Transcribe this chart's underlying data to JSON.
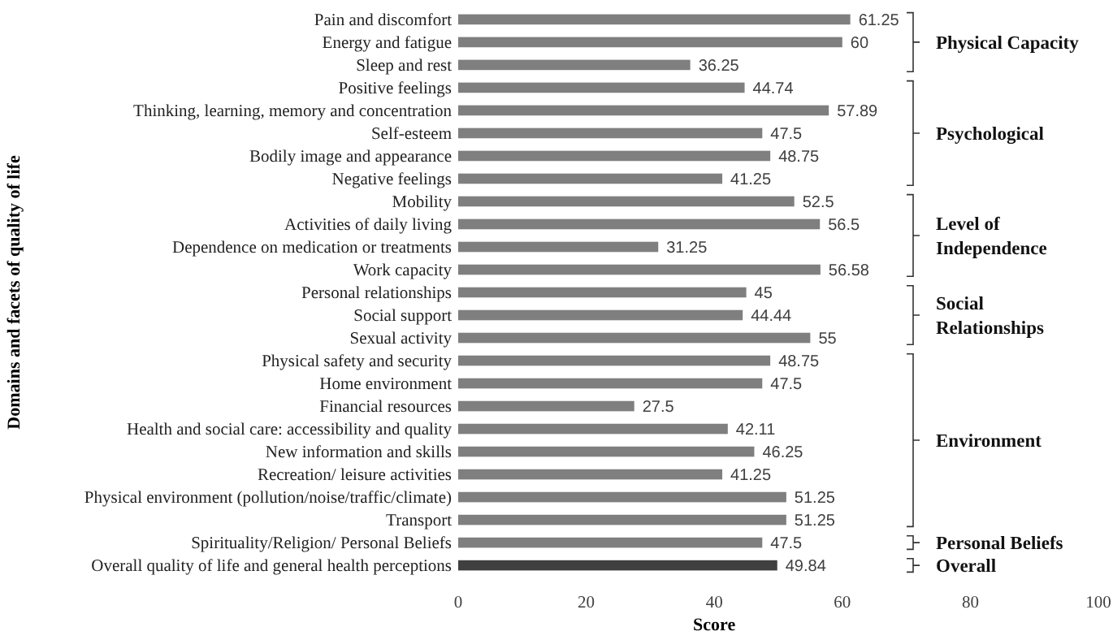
{
  "chart_data": {
    "type": "bar",
    "orientation": "horizontal",
    "xlabel": "Score",
    "ylabel": "Domains and facets of quality of life",
    "categories": [
      "Pain and discomfort",
      "Energy and fatigue",
      "Sleep and rest",
      "Positive feelings",
      "Thinking, learning, memory and concentration",
      "Self-esteem",
      "Bodily image and appearance",
      "Negative feelings",
      "Mobility",
      "Activities of daily living",
      "Dependence on medication or treatments",
      "Work capacity",
      "Personal relationships",
      "Social support",
      "Sexual activity",
      "Physical safety and security",
      "Home environment",
      "Financial resources",
      "Health and social care: accessibility and quality",
      "New information and skills",
      "Recreation/ leisure activities",
      "Physical environment (pollution/noise/traffic/climate)",
      "Transport",
      "Spirituality/Religion/ Personal Beliefs",
      "Overall quality of life and general health perceptions"
    ],
    "values": [
      61.25,
      60,
      36.25,
      44.74,
      57.89,
      47.5,
      48.75,
      41.25,
      52.5,
      56.5,
      31.25,
      56.58,
      45,
      44.44,
      55,
      48.75,
      47.5,
      27.5,
      42.11,
      46.25,
      41.25,
      51.25,
      51.25,
      47.5,
      49.84
    ],
    "colors": [
      "#7f7f7f",
      "#7f7f7f",
      "#7f7f7f",
      "#7f7f7f",
      "#7f7f7f",
      "#7f7f7f",
      "#7f7f7f",
      "#7f7f7f",
      "#7f7f7f",
      "#7f7f7f",
      "#7f7f7f",
      "#7f7f7f",
      "#7f7f7f",
      "#7f7f7f",
      "#7f7f7f",
      "#7f7f7f",
      "#7f7f7f",
      "#7f7f7f",
      "#7f7f7f",
      "#7f7f7f",
      "#7f7f7f",
      "#7f7f7f",
      "#7f7f7f",
      "#7f7f7f",
      "#404040"
    ],
    "xlim": [
      0,
      100
    ],
    "xticks": [
      0,
      20,
      40,
      60,
      80,
      100
    ],
    "data_labels": true,
    "annotations": [
      "Physical Capacity",
      "Psychological",
      "Level of Independence",
      "Social Relationships",
      "Environment",
      "Personal Beliefs",
      "Overall"
    ]
  }
}
